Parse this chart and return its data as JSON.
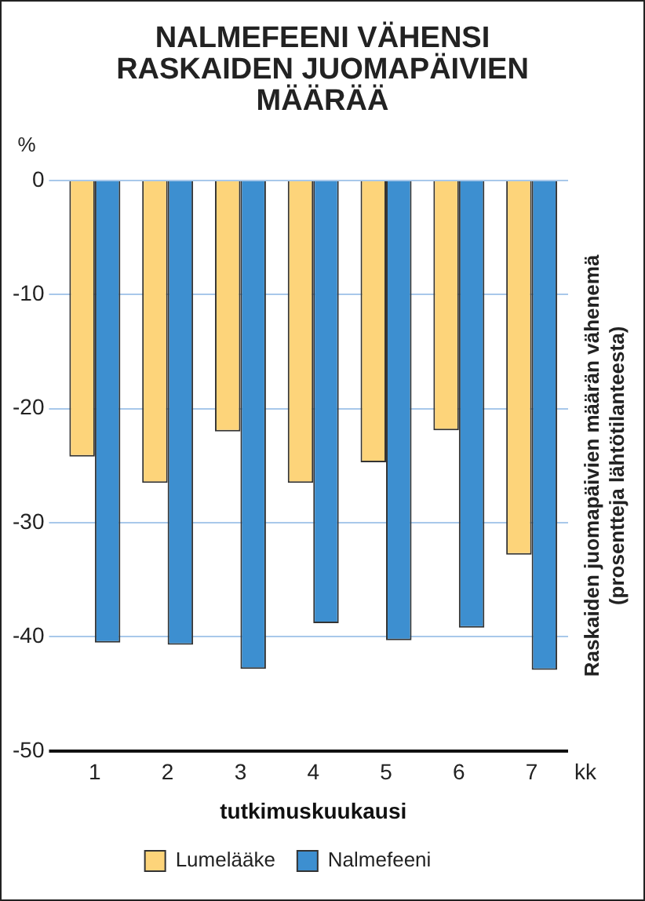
{
  "chart_data": {
    "type": "bar",
    "title": "NALMEFEENI VÄHENSI RASKAIDEN JUOMAPÄIVIEN MÄÄRÄÄ",
    "ylabel": "Raskaiden juomapäivien määrän vähenemä (prosentteja lähtötilanteesta)",
    "xlabel": "tutkimuskuukausi",
    "annotations": [
      "%",
      "kk"
    ],
    "categories": [
      "1",
      "2",
      "3",
      "4",
      "5",
      "6",
      "7"
    ],
    "series": [
      {
        "name": "Lumelääke",
        "color": "#fdd47a",
        "values": [
          -24.2,
          -26.5,
          -22.0,
          -26.5,
          -24.7,
          -21.9,
          -32.8
        ]
      },
      {
        "name": "Nalmefeeni",
        "color": "#3d8fd0",
        "values": [
          -40.5,
          -40.7,
          -42.8,
          -38.8,
          -40.3,
          -39.2,
          -42.9
        ]
      }
    ],
    "ylim": [
      -50,
      0
    ],
    "yticks": [
      0,
      -10,
      -20,
      -30,
      -40,
      -50
    ],
    "grid": "y",
    "legend": "bottom"
  }
}
